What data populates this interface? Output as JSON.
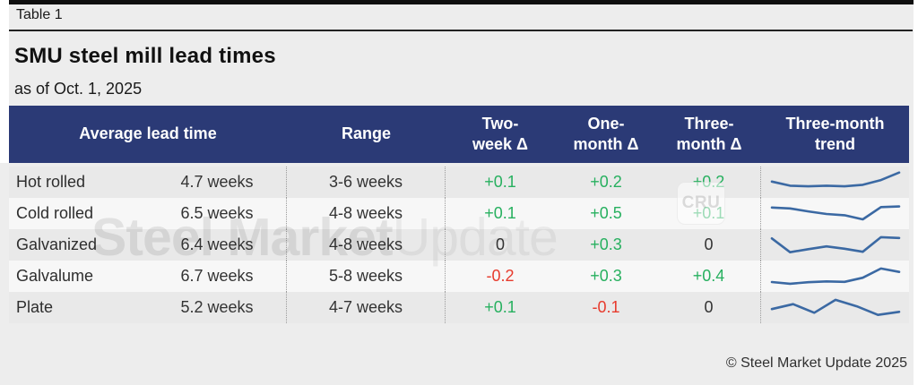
{
  "page": {
    "table_label": "Table 1",
    "title": "SMU steel mill lead times",
    "subtitle": "as of Oct. 1, 2025",
    "footer": "© Steel Market Update 2025"
  },
  "watermark": {
    "bold_part": "Steel Market",
    "light_part": "Update",
    "badge": "CRU"
  },
  "colors": {
    "header_bg": "#2b3a76",
    "positive_delta": "#27b05f",
    "negative_delta": "#e73b2d",
    "neutral_delta": "#333333",
    "sparkline": "#3b69a3",
    "row_dark": "#e9e9e9",
    "row_light": "#f7f7f7",
    "page_bg": "#ededed"
  },
  "table": {
    "headers": {
      "avg_group": "Average lead time",
      "range": "Range",
      "two_week": [
        "Two-",
        "week Δ"
      ],
      "one_month": [
        "One-",
        "month Δ"
      ],
      "three_month": [
        "Three-",
        "month Δ"
      ],
      "trend": [
        "Three-month",
        "trend"
      ]
    },
    "rows": [
      {
        "product": "Hot rolled",
        "avg": "4.7 weeks",
        "range": "3-6 weeks",
        "two_week": "+0.1",
        "one_month": "+0.2",
        "three_month": "+0.2",
        "trend": [
          0.55,
          0.36,
          0.33,
          0.36,
          0.33,
          0.4,
          0.62,
          0.97
        ]
      },
      {
        "product": "Cold rolled",
        "avg": "6.5 weeks",
        "range": "4-8 weeks",
        "two_week": "+0.1",
        "one_month": "+0.5",
        "three_month": "+0.1",
        "trend": [
          0.8,
          0.76,
          0.62,
          0.5,
          0.44,
          0.25,
          0.82,
          0.85
        ]
      },
      {
        "product": "Galvanized",
        "avg": "6.4 weeks",
        "range": "4-8 weeks",
        "two_week": "0",
        "one_month": "+0.3",
        "three_month": "0",
        "trend": [
          0.82,
          0.18,
          0.32,
          0.45,
          0.34,
          0.2,
          0.88,
          0.84
        ]
      },
      {
        "product": "Galvalume",
        "avg": "6.7 weeks",
        "range": "5-8 weeks",
        "two_week": "-0.2",
        "one_month": "+0.3",
        "three_month": "+0.4",
        "trend": [
          0.25,
          0.17,
          0.24,
          0.28,
          0.26,
          0.45,
          0.88,
          0.72
        ]
      },
      {
        "product": "Plate",
        "avg": "5.2 weeks",
        "range": "4-7 weeks",
        "two_week": "+0.1",
        "one_month": "-0.1",
        "three_month": "0",
        "trend": [
          0.45,
          0.68,
          0.28,
          0.88,
          0.58,
          0.18,
          0.32
        ]
      }
    ]
  },
  "chart_data": {
    "type": "table",
    "title": "SMU steel mill lead times",
    "subtitle": "as of Oct. 1, 2025",
    "columns": [
      "Product",
      "Average lead time",
      "Range",
      "Two-week Δ",
      "One-month Δ",
      "Three-month Δ",
      "Three-month trend"
    ],
    "rows": [
      [
        "Hot rolled",
        "4.7 weeks",
        "3-6 weeks",
        "+0.1",
        "+0.2",
        "+0.2"
      ],
      [
        "Cold rolled",
        "6.5 weeks",
        "4-8 weeks",
        "+0.1",
        "+0.5",
        "+0.1"
      ],
      [
        "Galvanized",
        "6.4 weeks",
        "4-8 weeks",
        "0",
        "+0.3",
        "0"
      ],
      [
        "Galvalume",
        "6.7 weeks",
        "5-8 weeks",
        "-0.2",
        "+0.3",
        "+0.4"
      ],
      [
        "Plate",
        "5.2 weeks",
        "4-7 weeks",
        "+0.1",
        "-0.1",
        "0"
      ]
    ],
    "sparklines": {
      "type": "line",
      "note": "three-month trend, normalized 0-1 vertical scale",
      "series": [
        {
          "name": "Hot rolled",
          "values": [
            0.55,
            0.36,
            0.33,
            0.36,
            0.33,
            0.4,
            0.62,
            0.97
          ]
        },
        {
          "name": "Cold rolled",
          "values": [
            0.8,
            0.76,
            0.62,
            0.5,
            0.44,
            0.25,
            0.82,
            0.85
          ]
        },
        {
          "name": "Galvanized",
          "values": [
            0.82,
            0.18,
            0.32,
            0.45,
            0.34,
            0.2,
            0.88,
            0.84
          ]
        },
        {
          "name": "Galvalume",
          "values": [
            0.25,
            0.17,
            0.24,
            0.28,
            0.26,
            0.45,
            0.88,
            0.72
          ]
        },
        {
          "name": "Plate",
          "values": [
            0.45,
            0.68,
            0.28,
            0.88,
            0.58,
            0.18,
            0.32
          ]
        }
      ]
    }
  }
}
